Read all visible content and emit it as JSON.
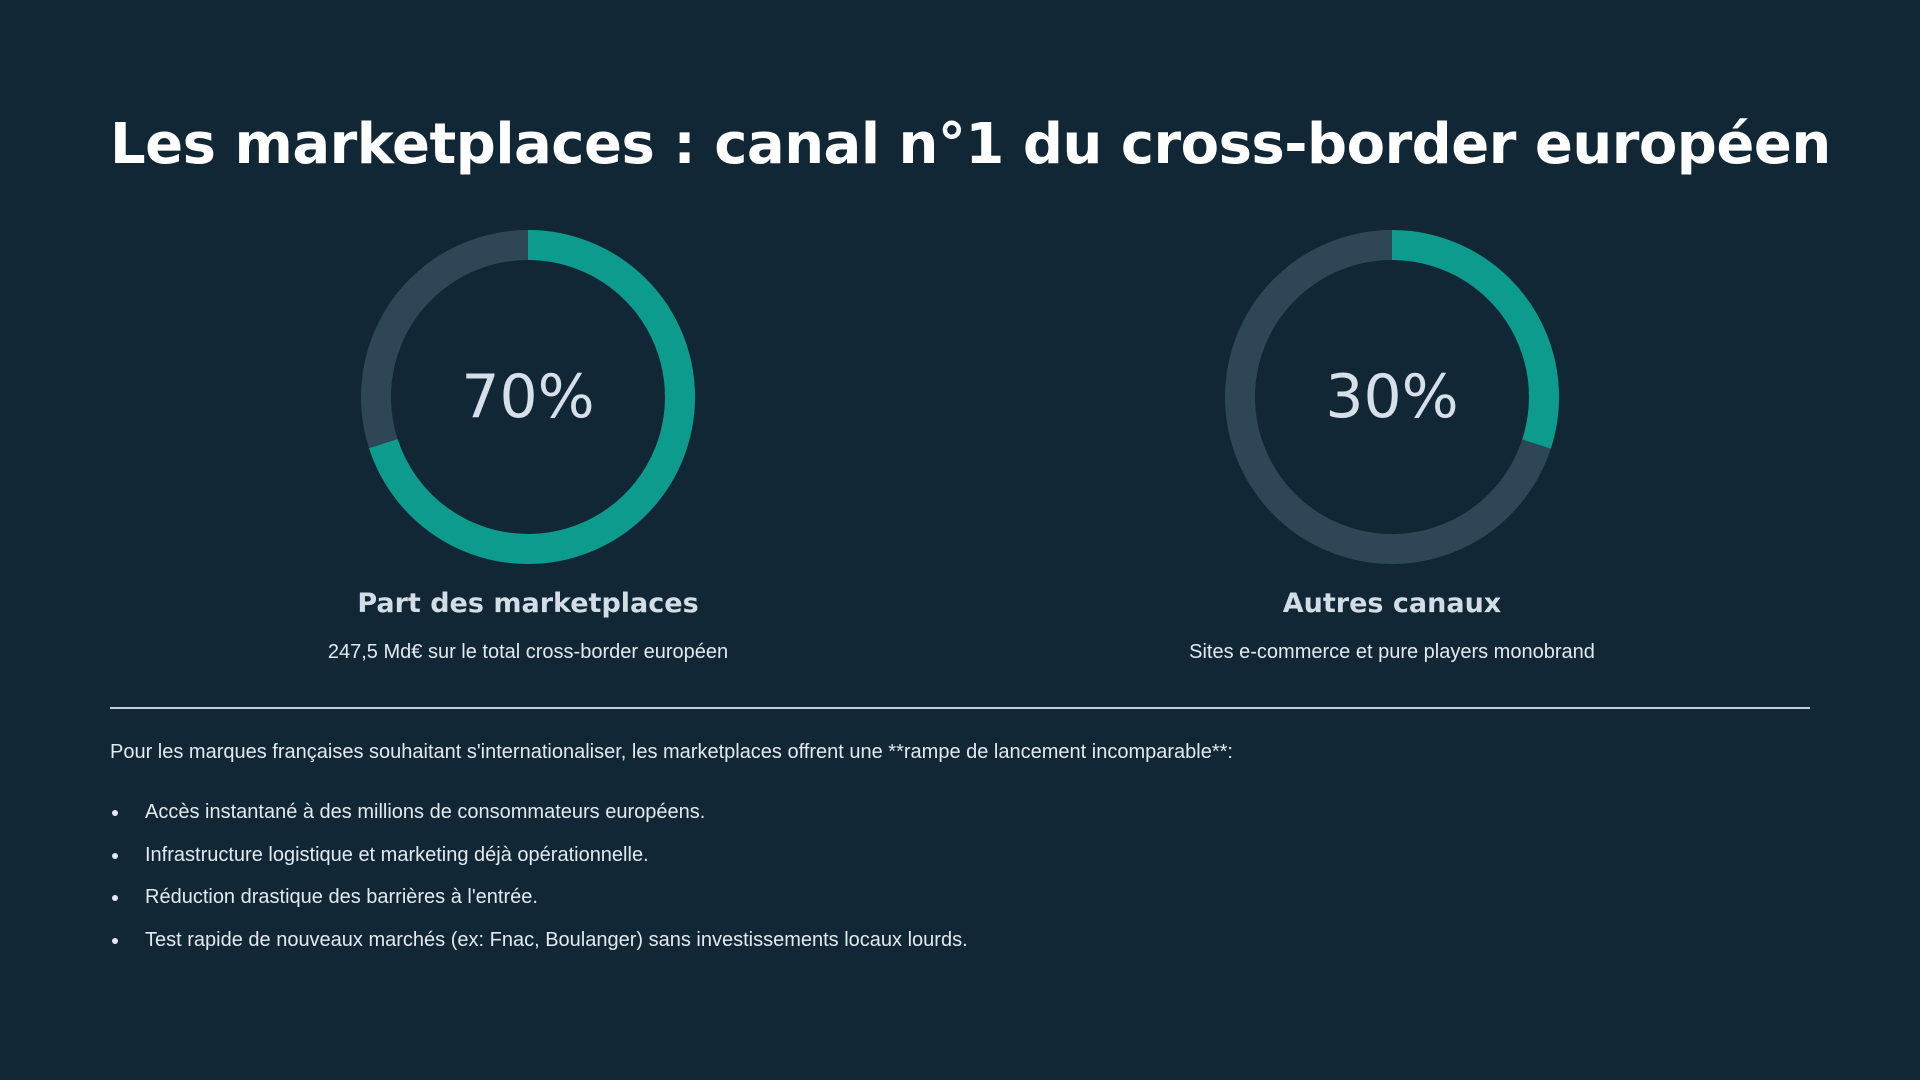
{
  "slide": {
    "title": "Les marketplaces : canal n°1 du cross-border européen",
    "stats": [
      {
        "value_text": "70%",
        "percent": 70,
        "label": "Part des marketplaces",
        "subtitle": "247,5 Md€ sur le total cross-border européen"
      },
      {
        "value_text": "30%",
        "percent": 30,
        "label": "Autres canaux",
        "subtitle": "Sites e-commerce et pure players monobrand"
      }
    ],
    "intro": "Pour les marques françaises souhaitant s'internationaliser, les marketplaces offrent une **rampe de lancement incomparable**:",
    "bullets": [
      "Accès instantané à des millions de consommateurs européens.",
      "Infrastructure logistique et marketing déjà opérationnelle.",
      "Réduction drastique des barrières à l'entrée.",
      "Test rapide de nouveaux marchés (ex: Fnac, Boulanger) sans investissements locaux lourds."
    ]
  },
  "colors": {
    "background": "#122736",
    "accent": "#0c9b8c",
    "track": "#2e4656",
    "text": "#e3e9ef"
  }
}
